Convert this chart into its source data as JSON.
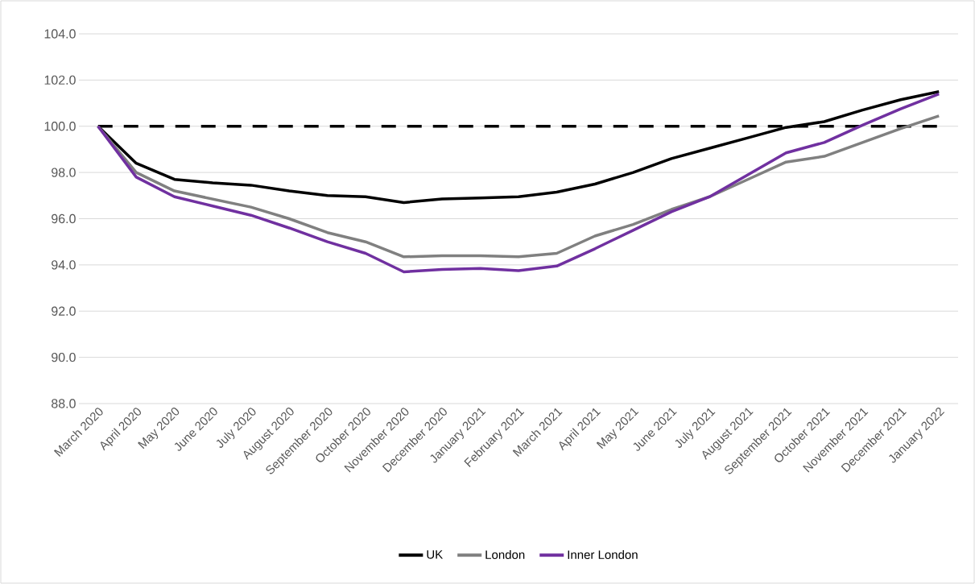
{
  "chart_data": {
    "type": "line",
    "categories": [
      "March 2020",
      "April 2020",
      "May 2020",
      "June 2020",
      "July 2020",
      "August 2020",
      "September 2020",
      "October 2020",
      "November 2020",
      "December 2020",
      "January 2021",
      "February 2021",
      "March 2021",
      "April 2021",
      "May 2021",
      "June 2021",
      "July 2021",
      "August 2021",
      "September 2021",
      "October 2021",
      "November 2021",
      "December 2021",
      "January 2022"
    ],
    "series": [
      {
        "name": "UK",
        "color": "#000000",
        "values": [
          100,
          98.4,
          97.7,
          97.55,
          97.45,
          97.2,
          97.0,
          96.95,
          96.7,
          96.85,
          96.9,
          96.95,
          97.15,
          97.5,
          98.0,
          98.6,
          99.05,
          99.5,
          99.95,
          100.2,
          100.7,
          101.15,
          101.5
        ]
      },
      {
        "name": "London",
        "color": "#808080",
        "values": [
          100,
          98.0,
          97.2,
          96.85,
          96.5,
          96.0,
          95.4,
          95.0,
          94.35,
          94.4,
          94.4,
          94.35,
          94.5,
          95.25,
          95.75,
          96.4,
          96.95,
          97.7,
          98.45,
          98.7,
          99.3,
          99.9,
          100.45
        ]
      },
      {
        "name": "Inner London",
        "color": "#7030a0",
        "values": [
          100,
          97.8,
          96.95,
          96.55,
          96.15,
          95.6,
          95.0,
          94.5,
          93.7,
          93.8,
          93.85,
          93.75,
          93.95,
          94.7,
          95.5,
          96.3,
          96.95,
          97.9,
          98.85,
          99.3,
          100.05,
          100.75,
          101.4
        ]
      }
    ],
    "ylim": [
      88,
      104
    ],
    "yticks": [
      {
        "value": 88,
        "label": "88.0"
      },
      {
        "value": 90,
        "label": "90.0"
      },
      {
        "value": 92,
        "label": "92.0"
      },
      {
        "value": 94,
        "label": "94.0"
      },
      {
        "value": 96,
        "label": "96.0"
      },
      {
        "value": 98,
        "label": "98.0"
      },
      {
        "value": 100,
        "label": "100.0"
      },
      {
        "value": 102,
        "label": "102.0"
      },
      {
        "value": 104,
        "label": "104.0"
      }
    ],
    "ref_lines": [
      {
        "axis": "y",
        "value": 100,
        "color": "#000000",
        "line_style": "dashed"
      }
    ],
    "grid": "y",
    "legend": "bottom"
  }
}
